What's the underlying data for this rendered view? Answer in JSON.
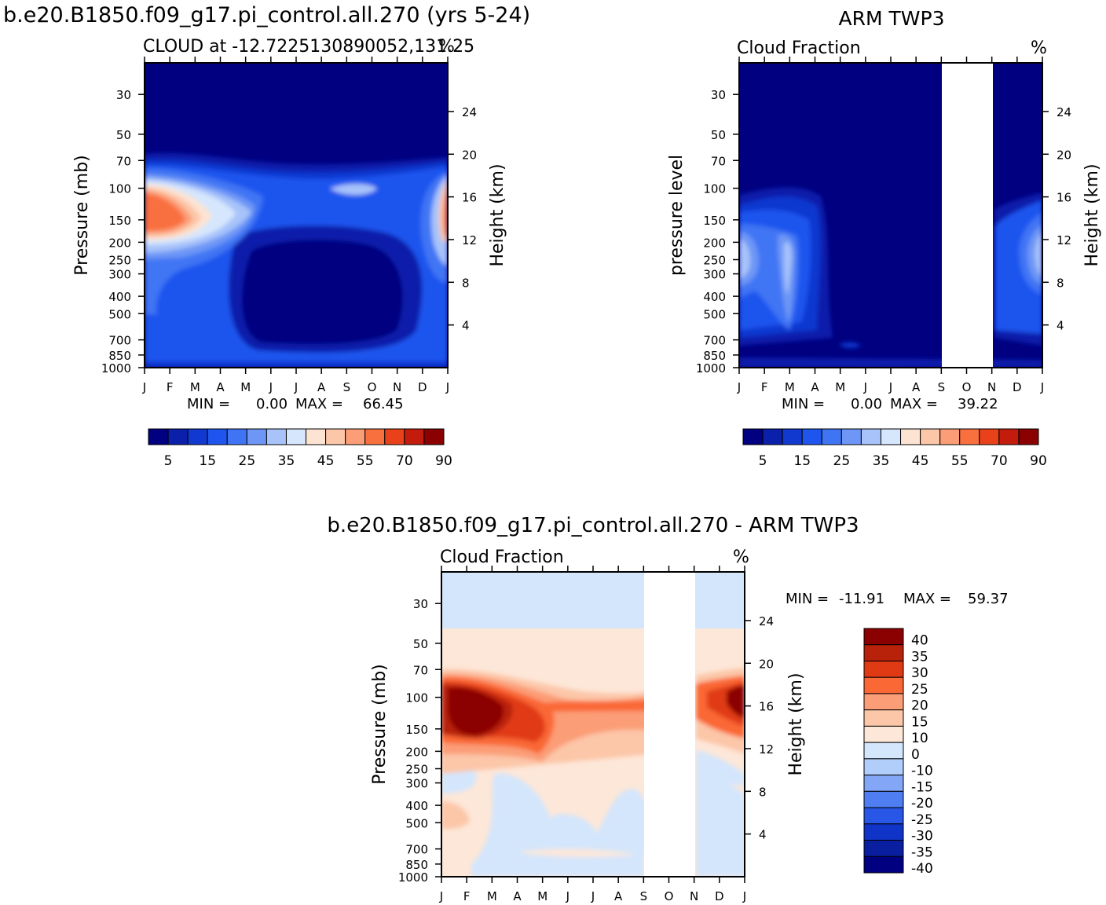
{
  "title_left": "b.e20.B1850.f09_g17.pi_control.all.270 (yrs 5-24)",
  "title_right": "ARM  TWP3",
  "title_bottom": "b.e20.B1850.f09_g17.pi_control.all.270 - ARM TWP3",
  "unit_label": "%",
  "colors": {
    "abs_scale": [
      "#000080",
      "#0a1faa",
      "#1139d0",
      "#1e55ee",
      "#3f74f4",
      "#6d96f6",
      "#a7c3fa",
      "#d6e6fd",
      "#fde3d2",
      "#fcc6a8",
      "#fb9d77",
      "#f9703f",
      "#e9411a",
      "#c31c0c",
      "#8b0000"
    ],
    "diff_scale": [
      "#8b0000",
      "#b8210a",
      "#e03a14",
      "#fa6836",
      "#fb9d77",
      "#fcc6a8",
      "#fde7d8",
      "#d4e6fc",
      "#b1cdfa",
      "#83a7f6",
      "#4f7ef2",
      "#2856e7",
      "#1034c8",
      "#0a1fa0",
      "#000080"
    ]
  },
  "chart_data": [
    {
      "type": "heatmap",
      "panel": "model",
      "subtitle_left": "CLOUD at -12.7225130890052,131.25",
      "subtitle_right": "%",
      "ylabel": "Pressure (mb)",
      "ylabel_right": "Height (km)",
      "x_ticks": [
        "J",
        "F",
        "M",
        "A",
        "M",
        "J",
        "J",
        "A",
        "S",
        "O",
        "N",
        "D",
        "J"
      ],
      "y_ticks": [
        "30",
        "50",
        "70",
        "100",
        "150",
        "200",
        "250",
        "300",
        "400",
        "500",
        "700",
        "850",
        "1000"
      ],
      "y_ticks_right": [
        "24",
        "20",
        "16",
        "12",
        "8",
        "4"
      ],
      "stats": {
        "min_label": "MIN =",
        "min": "0.00",
        "max_label": "MAX =",
        "max": "66.45"
      },
      "colorbar_labels": [
        "5",
        "15",
        "25",
        "35",
        "45",
        "55",
        "70",
        "90"
      ]
    },
    {
      "type": "heatmap",
      "panel": "observation",
      "subtitle_left": "Cloud Fraction",
      "subtitle_right": "%",
      "ylabel": "pressure level",
      "ylabel_right": "Height (km)",
      "x_ticks": [
        "J",
        "F",
        "M",
        "A",
        "M",
        "J",
        "J",
        "A",
        "S",
        "O",
        "N",
        "D",
        "J"
      ],
      "y_ticks": [
        "30",
        "50",
        "70",
        "100",
        "150",
        "200",
        "250",
        "300",
        "400",
        "500",
        "700",
        "850",
        "1000"
      ],
      "y_ticks_right": [
        "24",
        "20",
        "16",
        "12",
        "8",
        "4"
      ],
      "missing_months": [
        "S",
        "O",
        "N"
      ],
      "stats": {
        "min_label": "MIN =",
        "min": "0.00",
        "max_label": "MAX =",
        "max": "39.22"
      },
      "colorbar_labels": [
        "5",
        "15",
        "25",
        "35",
        "45",
        "55",
        "70",
        "90"
      ]
    },
    {
      "type": "heatmap",
      "panel": "difference",
      "subtitle_left": "Cloud Fraction",
      "subtitle_right": "%",
      "ylabel": "Pressure (mb)",
      "ylabel_right": "Height (km)",
      "x_ticks": [
        "J",
        "F",
        "M",
        "A",
        "M",
        "J",
        "J",
        "A",
        "S",
        "O",
        "N",
        "D",
        "J"
      ],
      "y_ticks": [
        "30",
        "50",
        "70",
        "100",
        "150",
        "200",
        "250",
        "300",
        "400",
        "500",
        "700",
        "850",
        "1000"
      ],
      "y_ticks_right": [
        "24",
        "20",
        "16",
        "12",
        "8",
        "4"
      ],
      "missing_months": [
        "S",
        "O",
        "N"
      ],
      "stats": {
        "min_label": "MIN =",
        "min": "-11.91",
        "max_label": "MAX =",
        "max": "59.37"
      },
      "colorbar_labels": [
        "40",
        "35",
        "30",
        "25",
        "20",
        "15",
        "10",
        "0",
        "-10",
        "-15",
        "-20",
        "-25",
        "-30",
        "-35",
        "-40"
      ]
    }
  ]
}
